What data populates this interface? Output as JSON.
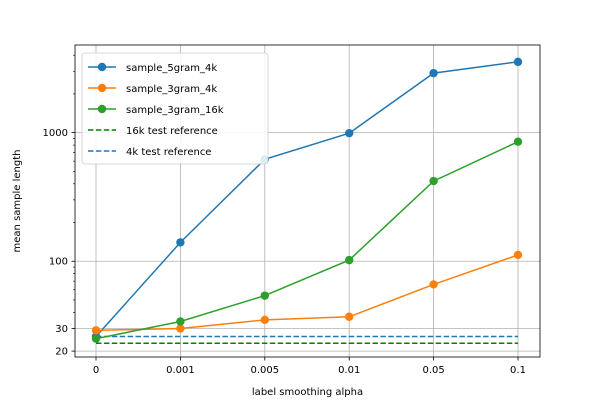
{
  "chart_data": {
    "type": "line",
    "title": "",
    "xlabel": "label smoothing alpha",
    "ylabel": "mean sample length",
    "y_scale": "log",
    "ylim": [
      18,
      4800
    ],
    "grid": true,
    "legend_position": "top-left",
    "categories": [
      "0",
      "0.001",
      "0.005",
      "0.01",
      "0.05",
      "0.1"
    ],
    "y_ticks": [
      {
        "value": 20,
        "label": "20"
      },
      {
        "value": 30,
        "label": "30"
      },
      {
        "value": 100,
        "label": "100"
      },
      {
        "value": 1000,
        "label": "1000"
      }
    ],
    "series": [
      {
        "name": "sample_5gram_4k",
        "color": "#1f77b4",
        "style": "solid",
        "marker": "circle",
        "values": [
          26,
          140,
          620,
          990,
          2900,
          3550
        ]
      },
      {
        "name": "sample_3gram_4k",
        "color": "#ff7f0e",
        "style": "solid",
        "marker": "circle",
        "values": [
          29,
          30,
          35,
          37,
          66,
          112
        ]
      },
      {
        "name": "sample_3gram_16k",
        "color": "#2ca02c",
        "style": "solid",
        "marker": "circle",
        "values": [
          25,
          34,
          54,
          102,
          420,
          850
        ]
      },
      {
        "name": "16k test reference",
        "color": "#008000",
        "style": "dashed",
        "marker": "none",
        "values": [
          23,
          23,
          23,
          23,
          23,
          23
        ]
      },
      {
        "name": "4k test reference",
        "color": "#1f77b4",
        "style": "dashed",
        "marker": "none",
        "values": [
          26,
          26,
          26,
          26,
          26,
          26
        ]
      }
    ]
  }
}
